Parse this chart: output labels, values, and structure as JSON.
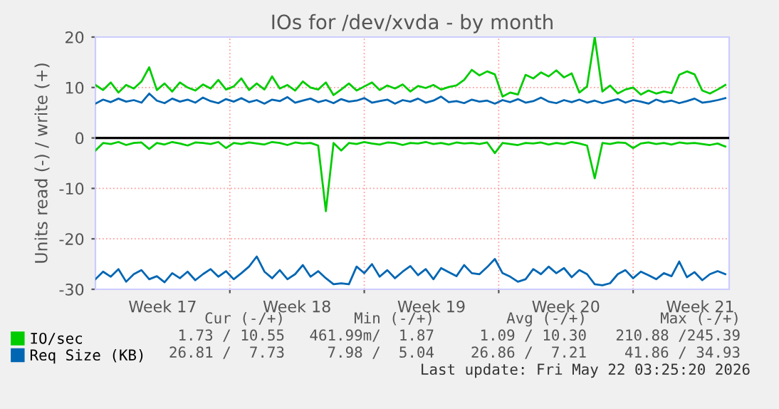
{
  "chart_data": {
    "type": "line",
    "title": "IOs for /dev/xvda - by month",
    "ylabel": "Units read (-) / write (+)",
    "x": [
      "2026-04-20T00:00",
      "2026-04-20T09:36",
      "2026-04-20T19:12",
      "2026-04-21T04:48",
      "2026-04-21T14:24",
      "2026-04-22T00:00",
      "2026-04-22T09:36",
      "2026-04-22T19:12",
      "2026-04-23T04:48",
      "2026-04-23T14:24",
      "2026-04-24T00:00",
      "2026-04-24T09:36",
      "2026-04-24T19:12",
      "2026-04-25T04:48",
      "2026-04-25T14:24",
      "2026-04-26T00:00",
      "2026-04-26T09:36",
      "2026-04-26T19:12",
      "2026-04-27T04:48",
      "2026-04-27T14:24",
      "2026-04-28T00:00",
      "2026-04-28T09:36",
      "2026-04-28T19:12",
      "2026-04-29T04:48",
      "2026-04-29T14:24",
      "2026-04-30T00:00",
      "2026-04-30T09:36",
      "2026-04-30T19:12",
      "2026-05-01T04:48",
      "2026-05-01T14:24",
      "2026-05-02T00:00",
      "2026-05-02T09:36",
      "2026-05-02T19:12",
      "2026-05-03T04:48",
      "2026-05-03T14:24",
      "2026-05-04T00:00",
      "2026-05-04T09:36",
      "2026-05-04T19:12",
      "2026-05-05T04:48",
      "2026-05-05T14:24",
      "2026-05-06T00:00",
      "2026-05-06T09:36",
      "2026-05-06T19:12",
      "2026-05-07T04:48",
      "2026-05-07T14:24",
      "2026-05-08T00:00",
      "2026-05-08T09:36",
      "2026-05-08T19:12",
      "2026-05-09T04:48",
      "2026-05-09T14:24",
      "2026-05-10T00:00",
      "2026-05-10T09:36",
      "2026-05-10T19:12",
      "2026-05-11T04:48",
      "2026-05-11T14:24",
      "2026-05-12T00:00",
      "2026-05-12T09:36",
      "2026-05-12T19:12",
      "2026-05-13T04:48",
      "2026-05-13T14:24",
      "2026-05-14T00:00",
      "2026-05-14T09:36",
      "2026-05-14T19:12",
      "2026-05-15T04:48",
      "2026-05-15T14:24",
      "2026-05-16T00:00",
      "2026-05-16T09:36",
      "2026-05-16T19:12",
      "2026-05-17T04:48",
      "2026-05-17T14:24",
      "2026-05-18T00:00",
      "2026-05-18T09:36",
      "2026-05-18T19:12",
      "2026-05-19T04:48",
      "2026-05-19T14:24",
      "2026-05-20T00:00",
      "2026-05-20T09:36",
      "2026-05-20T19:12",
      "2026-05-21T04:48",
      "2026-05-21T14:24",
      "2026-05-22T00:00",
      "2026-05-22T09:36",
      "2026-05-22T19:12"
    ],
    "series": [
      {
        "name": "IO/sec",
        "color": "#00cc00",
        "values": [
          10.5,
          9.5,
          11,
          9,
          10.5,
          9.8,
          11.2,
          14,
          9.5,
          10.8,
          9.2,
          11,
          10,
          9.4,
          10.6,
          9.8,
          11.5,
          9.6,
          10.2,
          11.8,
          9.5,
          10.8,
          9.6,
          12.2,
          9.8,
          10.5,
          9.4,
          11.2,
          10,
          9.6,
          11,
          8.5,
          9.6,
          10.8,
          9.4,
          10.2,
          11,
          9.5,
          10.4,
          9.8,
          10.6,
          9.2,
          10.3,
          9.9,
          10.5,
          9.6,
          10.1,
          10.4,
          11.5,
          13.5,
          12.4,
          13.2,
          12.6,
          8.2,
          9,
          8.6,
          12.5,
          11.8,
          13,
          12.2,
          13.4,
          12,
          12.8,
          9,
          10.2,
          20,
          9.2,
          10.4,
          8.8,
          9.6,
          10,
          8.6,
          9.4,
          8.8,
          9.2,
          8.9,
          12.5,
          13.2,
          12.6,
          9.4,
          8.8,
          9.6,
          10.5
        ]
      },
      {
        "color": "#00cc00",
        "values": [
          -2.5,
          -1,
          -1.2,
          -0.8,
          -1.4,
          -1,
          -0.9,
          -2.2,
          -1,
          -1.3,
          -0.8,
          -1.1,
          -1.5,
          -0.9,
          -1,
          -1.2,
          -0.8,
          -2,
          -1,
          -1.2,
          -0.9,
          -1.1,
          -1.3,
          -0.8,
          -1,
          -1.4,
          -0.9,
          -1.1,
          -1,
          -1.5,
          -14.5,
          -1,
          -2.5,
          -1,
          -1.2,
          -0.8,
          -1.1,
          -1.3,
          -0.9,
          -1,
          -1.4,
          -1,
          -1.1,
          -0.8,
          -1.2,
          -1,
          -1.3,
          -0.9,
          -1.1,
          -1,
          -1.2,
          -0.9,
          -3,
          -1,
          -1.2,
          -1.4,
          -1,
          -1.1,
          -0.9,
          -1.3,
          -1,
          -1.2,
          -0.8,
          -1.1,
          -1.5,
          -8,
          -1,
          -1.2,
          -0.9,
          -1,
          -2,
          -1.1,
          -0.9,
          -1.2,
          -1,
          -1.3,
          -0.9,
          -1.1,
          -1,
          -1.2,
          -1.4,
          -1.1,
          -1.7
        ]
      },
      {
        "name": "Req Size (KB)",
        "color": "#0066b3",
        "values": [
          6.8,
          7.6,
          7.1,
          7.8,
          7.2,
          7.5,
          7.0,
          8.8,
          7.4,
          6.9,
          7.8,
          7.2,
          7.6,
          7.0,
          8.0,
          7.3,
          6.9,
          7.7,
          7.2,
          7.9,
          7.1,
          7.5,
          6.8,
          7.6,
          7.3,
          8.1,
          7.0,
          7.4,
          7.8,
          7.1,
          7.5,
          6.9,
          7.7,
          7.2,
          7.4,
          7.9,
          7.0,
          7.3,
          7.6,
          6.8,
          7.5,
          7.2,
          7.8,
          7.0,
          7.4,
          8.2,
          7.1,
          7.3,
          6.9,
          7.6,
          7.2,
          7.4,
          6.8,
          7.5,
          7.1,
          7.7,
          7.0,
          7.3,
          8.0,
          7.2,
          6.9,
          7.5,
          7.1,
          7.6,
          7.0,
          7.4,
          6.9,
          7.3,
          7.7,
          7.0,
          7.5,
          7.2,
          6.8,
          7.6,
          7.1,
          7.4,
          6.9,
          7.3,
          7.8,
          7.0,
          7.2,
          7.5,
          7.9
        ]
      },
      {
        "color": "#0066b3",
        "values": [
          -28,
          -26.5,
          -27.5,
          -26,
          -28.5,
          -27,
          -26.2,
          -28,
          -27.4,
          -28.6,
          -26.8,
          -27.8,
          -26.5,
          -28.2,
          -27,
          -26,
          -27.5,
          -26.4,
          -28,
          -26.8,
          -25.5,
          -23.5,
          -26.5,
          -27.8,
          -26.2,
          -28,
          -27,
          -25.2,
          -27.5,
          -26.4,
          -27.8,
          -29,
          -28.8,
          -29,
          -25.5,
          -26.8,
          -25,
          -27.5,
          -26.2,
          -27.8,
          -26.5,
          -25.4,
          -27.2,
          -26,
          -28,
          -25.8,
          -26.6,
          -27.4,
          -25.2,
          -26.8,
          -27,
          -25.6,
          -24,
          -26.8,
          -27.5,
          -28.5,
          -28,
          -26,
          -27,
          -25.5,
          -26.8,
          -25.8,
          -27.6,
          -26.2,
          -27,
          -29,
          -29.2,
          -28.8,
          -27,
          -26.2,
          -27.8,
          -26.5,
          -27.2,
          -28,
          -26.8,
          -27.4,
          -24.5,
          -27.6,
          -26.6,
          -28.2,
          -27,
          -26.4,
          -27
        ]
      }
    ],
    "xlim": [
      "2026-04-20T00:00",
      "2026-05-23T00:00"
    ],
    "xticks": [
      {
        "value": "2026-04-23T12:00",
        "label": "Week 17"
      },
      {
        "value": "2026-04-27",
        "label": null
      },
      {
        "value": "2026-04-30T12:00",
        "label": "Week 18"
      },
      {
        "value": "2026-05-04",
        "label": null
      },
      {
        "value": "2026-05-07T12:00",
        "label": "Week 19"
      },
      {
        "value": "2026-05-11",
        "label": null
      },
      {
        "value": "2026-05-14T12:00",
        "label": "Week 20"
      },
      {
        "value": "2026-05-18",
        "label": null
      },
      {
        "value": "2026-05-21T12:00",
        "label": "Week 21"
      }
    ],
    "ylim": [
      -30,
      20
    ],
    "yticks": [
      -30,
      -20,
      -10,
      0,
      10,
      20
    ],
    "ref_lines": [
      {
        "axis": "y",
        "value": 0,
        "color": "#000000"
      }
    ],
    "grid": true,
    "legend": "bottom",
    "marker": "none",
    "line_style": "solid",
    "annotations": [
      "Cur (-/+)",
      "Min (-/+)",
      "Avg (-/+)",
      "Max (-/+)",
      "1.73 / 10.55",
      "461.99m/  1.87",
      "1.09 / 10.30",
      "210.88 /245.39",
      "26.81 /  7.73",
      "7.98 /  5.04",
      "26.86 /  7.21",
      "41.86 / 34.93",
      "Last update: Fri May 22 03:25:20 2026"
    ]
  }
}
